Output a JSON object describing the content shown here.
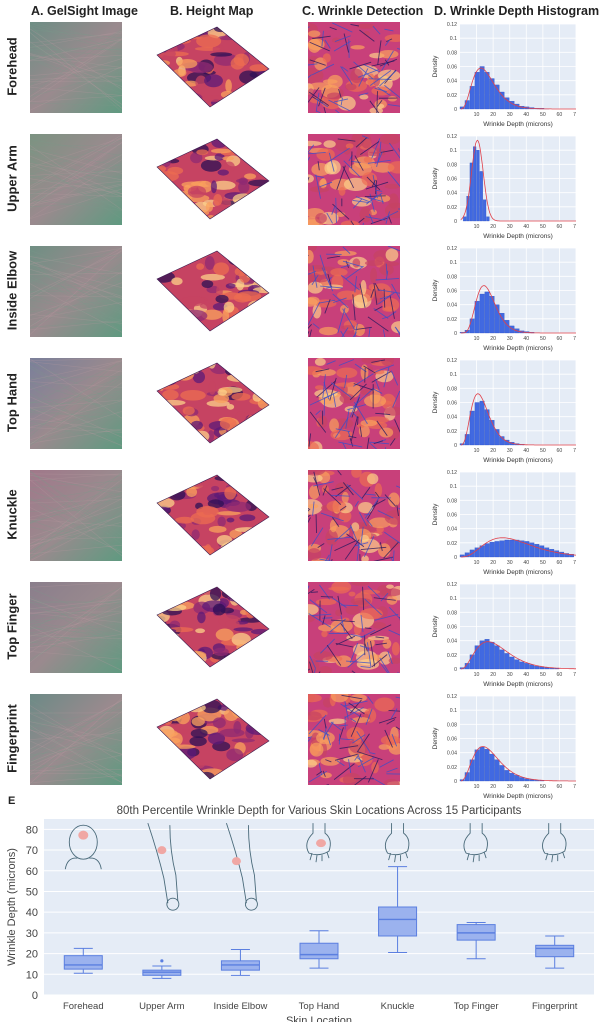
{
  "column_headers": [
    "A. GelSight Image",
    "B. Height Map",
    "C. Wrinkle Detection",
    "D. Wrinkle Depth Histogram"
  ],
  "row_labels": [
    "Forehead",
    "Upper Arm",
    "Inside Elbow",
    "Top Hand",
    "Knuckle",
    "Top Finger",
    "Fingerprint"
  ],
  "panel_letter_e": "E",
  "histogram_axes": {
    "xlabel": "Wrinkle Depth (microns)",
    "ylabel": "Density",
    "xticks": [
      "10",
      "20",
      "30",
      "40",
      "50",
      "60",
      "70"
    ],
    "yticks": [
      "0",
      "0.02",
      "0.04",
      "0.06",
      "0.08",
      "0.1",
      "0.12"
    ],
    "xlim": [
      0,
      70
    ],
    "ylim": [
      0,
      0.12
    ]
  },
  "colors": {
    "bar": "#4169e1",
    "fit_curve": "#e0404a",
    "plot_bg": "#e5ecf6",
    "box_fill": "#9bb2ee",
    "box_line": "#5b7fe0",
    "gelsight_tints": [
      "#6d8d84",
      "#7b9381",
      "#6f8f83",
      "#7a7f9a",
      "#a0788a",
      "#8a7e8c",
      "#6c8a86"
    ]
  },
  "chart_data": [
    {
      "type": "bar",
      "title": "Forehead",
      "xlabel": "Wrinkle Depth (microns)",
      "ylabel": "Density",
      "xlim": [
        0,
        70
      ],
      "ylim": [
        0,
        0.12
      ],
      "bin_width": 3,
      "bin_centers": [
        1.5,
        4.5,
        7.5,
        10.5,
        13.5,
        16.5,
        19.5,
        22.5,
        25.5,
        28.5,
        31.5,
        34.5,
        37.5,
        40.5,
        43.5,
        46.5,
        49.5,
        52.5
      ],
      "values": [
        0.003,
        0.012,
        0.032,
        0.052,
        0.06,
        0.052,
        0.043,
        0.034,
        0.024,
        0.016,
        0.011,
        0.007,
        0.004,
        0.003,
        0.002,
        0.001,
        0.001,
        0.0005
      ],
      "fit_curve": {
        "shape": "gamma",
        "k": 4.5,
        "theta": 3.6
      }
    },
    {
      "type": "bar",
      "title": "Upper Arm",
      "xlabel": "Wrinkle Depth (microns)",
      "ylabel": "Density",
      "xlim": [
        0,
        70
      ],
      "ylim": [
        0,
        0.12
      ],
      "bin_width": 2,
      "bin_centers": [
        3,
        5,
        7,
        9,
        11,
        13,
        15,
        17
      ],
      "values": [
        0.006,
        0.035,
        0.082,
        0.105,
        0.1,
        0.07,
        0.03,
        0.006
      ],
      "fit_curve": {
        "shape": "normal",
        "mean": 10.5,
        "sd": 3.5
      }
    },
    {
      "type": "bar",
      "title": "Inside Elbow",
      "xlabel": "Wrinkle Depth (microns)",
      "ylabel": "Density",
      "xlim": [
        0,
        70
      ],
      "ylim": [
        0,
        0.12
      ],
      "bin_width": 3,
      "bin_centers": [
        1.5,
        4.5,
        7.5,
        10.5,
        13.5,
        16.5,
        19.5,
        22.5,
        25.5,
        28.5,
        31.5,
        34.5,
        37.5,
        40.5,
        43.5
      ],
      "values": [
        0.001,
        0.004,
        0.02,
        0.045,
        0.055,
        0.058,
        0.052,
        0.04,
        0.028,
        0.018,
        0.01,
        0.006,
        0.003,
        0.002,
        0.001
      ],
      "fit_curve": {
        "shape": "gamma",
        "k": 7.0,
        "theta": 2.4
      }
    },
    {
      "type": "bar",
      "title": "Top Hand",
      "xlabel": "Wrinkle Depth (microns)",
      "ylabel": "Density",
      "xlim": [
        0,
        70
      ],
      "ylim": [
        0,
        0.12
      ],
      "bin_width": 3,
      "bin_centers": [
        1.5,
        4.5,
        7.5,
        10.5,
        13.5,
        16.5,
        19.5,
        22.5,
        25.5,
        28.5,
        31.5,
        34.5,
        37.5
      ],
      "values": [
        0.002,
        0.015,
        0.048,
        0.06,
        0.062,
        0.05,
        0.035,
        0.022,
        0.012,
        0.007,
        0.004,
        0.002,
        0.001
      ],
      "fit_curve": {
        "shape": "gamma",
        "k": 5.0,
        "theta": 2.7
      }
    },
    {
      "type": "bar",
      "title": "Knuckle",
      "xlabel": "Wrinkle Depth (microns)",
      "ylabel": "Density",
      "xlim": [
        0,
        70
      ],
      "ylim": [
        0,
        0.12
      ],
      "bin_width": 3,
      "bin_centers": [
        1.5,
        4.5,
        7.5,
        10.5,
        13.5,
        16.5,
        19.5,
        22.5,
        25.5,
        28.5,
        31.5,
        34.5,
        37.5,
        40.5,
        43.5,
        46.5,
        49.5,
        52.5,
        55.5,
        58.5,
        61.5,
        64.5,
        67.5
      ],
      "values": [
        0.003,
        0.006,
        0.01,
        0.013,
        0.016,
        0.019,
        0.021,
        0.022,
        0.023,
        0.024,
        0.024,
        0.024,
        0.023,
        0.022,
        0.02,
        0.018,
        0.016,
        0.013,
        0.011,
        0.009,
        0.007,
        0.005,
        0.004
      ],
      "fit_curve": {
        "shape": "gamma",
        "k": 4.2,
        "theta": 8.0
      }
    },
    {
      "type": "bar",
      "title": "Top Finger",
      "xlabel": "Wrinkle Depth (microns)",
      "ylabel": "Density",
      "xlim": [
        0,
        70
      ],
      "ylim": [
        0,
        0.12
      ],
      "bin_width": 3,
      "bin_centers": [
        1.5,
        4.5,
        7.5,
        10.5,
        13.5,
        16.5,
        19.5,
        22.5,
        25.5,
        28.5,
        31.5,
        34.5,
        37.5,
        40.5,
        43.5,
        46.5,
        49.5,
        52.5,
        55.5,
        58.5
      ],
      "values": [
        0.002,
        0.008,
        0.02,
        0.033,
        0.04,
        0.042,
        0.038,
        0.033,
        0.027,
        0.022,
        0.017,
        0.013,
        0.01,
        0.008,
        0.006,
        0.004,
        0.003,
        0.002,
        0.001,
        0.001
      ],
      "fit_curve": {
        "shape": "gamma",
        "k": 3.8,
        "theta": 6.0
      }
    },
    {
      "type": "bar",
      "title": "Fingerprint",
      "xlabel": "Wrinkle Depth (microns)",
      "ylabel": "Density",
      "xlim": [
        0,
        70
      ],
      "ylim": [
        0,
        0.12
      ],
      "bin_width": 3,
      "bin_centers": [
        1.5,
        4.5,
        7.5,
        10.5,
        13.5,
        16.5,
        19.5,
        22.5,
        25.5,
        28.5,
        31.5,
        34.5,
        37.5,
        40.5,
        43.5,
        46.5,
        49.5
      ],
      "values": [
        0.002,
        0.012,
        0.03,
        0.044,
        0.048,
        0.045,
        0.038,
        0.03,
        0.022,
        0.015,
        0.011,
        0.008,
        0.005,
        0.003,
        0.002,
        0.001,
        0.001
      ],
      "fit_curve": {
        "shape": "gamma",
        "k": 4.0,
        "theta": 4.6
      }
    },
    {
      "type": "box",
      "title": "80th Percentile Wrinkle Depth for Various Skin Locations Across 15 Participants",
      "xlabel": "Skin Location",
      "ylabel": "Wrinkle Depth (microns)",
      "ylim": [
        0,
        85
      ],
      "yticks": [
        "0",
        "10",
        "20",
        "30",
        "40",
        "50",
        "60",
        "70",
        "80"
      ],
      "categories": [
        "Forehead",
        "Upper Arm",
        "Inside Elbow",
        "Top Hand",
        "Knuckle",
        "Top Finger",
        "Fingerprint"
      ],
      "boxes": [
        {
          "whisker_low": 10.5,
          "q1": 12.5,
          "median": 14.5,
          "q3": 19,
          "whisker_high": 22.5,
          "outliers": []
        },
        {
          "whisker_low": 8,
          "q1": 9.5,
          "median": 11,
          "q3": 12,
          "whisker_high": 14,
          "outliers": [
            16.5
          ]
        },
        {
          "whisker_low": 9.5,
          "q1": 12,
          "median": 14.5,
          "q3": 16.5,
          "whisker_high": 22,
          "outliers": []
        },
        {
          "whisker_low": 13,
          "q1": 17.5,
          "median": 19.5,
          "q3": 25,
          "whisker_high": 31,
          "outliers": []
        },
        {
          "whisker_low": 20.5,
          "q1": 28.5,
          "median": 36.5,
          "q3": 42.5,
          "whisker_high": 62,
          "outliers": []
        },
        {
          "whisker_low": 17.5,
          "q1": 26.5,
          "median": 30,
          "q3": 34,
          "whisker_high": 35,
          "outliers": []
        },
        {
          "whisker_low": 13,
          "q1": 18.5,
          "median": 22.5,
          "q3": 24,
          "whisker_high": 28.5,
          "outliers": []
        }
      ],
      "location_icons": [
        "head-forehead-icon",
        "arm-upper-arm-icon",
        "arm-inside-elbow-icon",
        "hand-top-hand-icon",
        "hand-knuckle-icon",
        "hand-top-finger-icon",
        "hand-fingerprint-icon"
      ]
    }
  ]
}
